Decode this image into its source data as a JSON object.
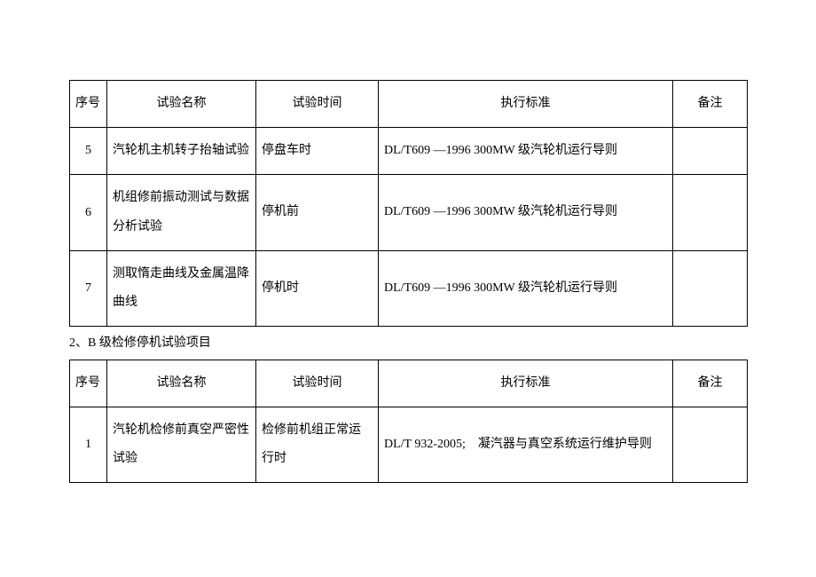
{
  "table1": {
    "headers": {
      "seq": "序号",
      "name": "试验名称",
      "time": "试验时间",
      "std": "执行标准",
      "note": "备注"
    },
    "rows": [
      {
        "seq": "5",
        "name": "汽轮机主机转子抬轴试验",
        "time": "停盘车时",
        "std": "DL/T609 —1996 300MW 级汽轮机运行导则",
        "note": ""
      },
      {
        "seq": "6",
        "name": "机组修前振动测试与数据分析试验",
        "time": "停机前",
        "std": "DL/T609 —1996 300MW 级汽轮机运行导则",
        "note": ""
      },
      {
        "seq": "7",
        "name": "测取惰走曲线及金属温降曲线",
        "time": "停机时",
        "std": "DL/T609 —1996 300MW 级汽轮机运行导则",
        "note": ""
      }
    ]
  },
  "section_title": "2、B 级检修停机试验项目",
  "table2": {
    "headers": {
      "seq": "序号",
      "name": "试验名称",
      "time": "试验时间",
      "std": "执行标准",
      "note": "备注"
    },
    "rows": [
      {
        "seq": "1",
        "name": "汽轮机检修前真空严密性试验",
        "time": "检修前机组正常运行时",
        "std": "DL/T 932-2005;　凝汽器与真空系统运行维护导则",
        "note": ""
      }
    ]
  }
}
